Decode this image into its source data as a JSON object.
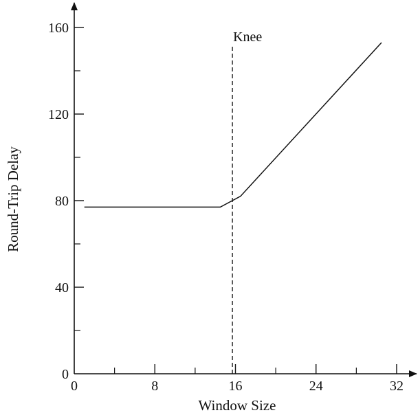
{
  "chart_data": {
    "type": "line",
    "title": "",
    "xlabel": "Window Size",
    "ylabel": "Round-Trip Delay",
    "xlim": [
      0,
      32
    ],
    "ylim": [
      0,
      160
    ],
    "x_ticks": [
      0,
      8,
      16,
      24,
      32
    ],
    "x_tick_labels": [
      "0",
      "8",
      "16",
      "24",
      "32"
    ],
    "x_minor_ticks": [
      4,
      12,
      20,
      28
    ],
    "y_ticks": [
      0,
      40,
      80,
      120,
      160
    ],
    "y_tick_labels": [
      "0",
      "40",
      "80",
      "120",
      "160"
    ],
    "y_minor_ticks": [
      20,
      60,
      100,
      140
    ],
    "grid": false,
    "series": [
      {
        "x": [
          1,
          14.5,
          16.5,
          30.5
        ],
        "y": [
          77,
          77,
          82,
          153
        ]
      }
    ],
    "annotations": [
      {
        "text": "Knee",
        "x": 15.7,
        "line_style": "dashed"
      }
    ]
  }
}
